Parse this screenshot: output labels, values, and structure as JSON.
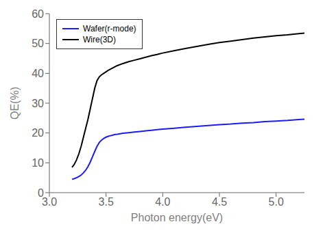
{
  "chart_data": {
    "type": "line",
    "xlabel": "Photon energy(eV)",
    "ylabel": "QE(%)",
    "x": [
      3.2,
      3.22,
      3.24,
      3.26,
      3.28,
      3.3,
      3.32,
      3.34,
      3.36,
      3.38,
      3.4,
      3.42,
      3.44,
      3.46,
      3.48,
      3.5,
      3.52,
      3.54,
      3.56,
      3.58,
      3.6,
      3.65,
      3.7,
      3.75,
      3.8,
      3.85,
      3.9,
      3.95,
      4.0,
      4.1,
      4.2,
      4.3,
      4.4,
      4.5,
      4.6,
      4.7,
      4.8,
      4.9,
      5.0,
      5.1,
      5.2,
      5.25
    ],
    "series": [
      {
        "name": "Wire(3D)",
        "color": "#000000",
        "values": [
          8.5,
          9.5,
          11.0,
          13.0,
          15.5,
          18.5,
          21.5,
          24.5,
          28.0,
          31.5,
          35.0,
          37.5,
          38.8,
          39.5,
          40.0,
          40.5,
          41.0,
          41.4,
          41.8,
          42.2,
          42.6,
          43.3,
          43.9,
          44.4,
          44.9,
          45.4,
          45.9,
          46.3,
          46.8,
          47.6,
          48.3,
          49.0,
          49.7,
          50.3,
          50.8,
          51.3,
          51.8,
          52.2,
          52.6,
          52.9,
          53.3,
          53.5
        ]
      },
      {
        "name": "Wafer(r-mode)",
        "color": "#1a1aff",
        "values": [
          4.5,
          4.7,
          5.0,
          5.4,
          5.9,
          6.6,
          7.5,
          8.7,
          10.2,
          12.0,
          13.8,
          15.5,
          16.8,
          17.6,
          18.2,
          18.6,
          18.9,
          19.1,
          19.3,
          19.5,
          19.6,
          19.9,
          20.1,
          20.3,
          20.5,
          20.7,
          20.9,
          21.1,
          21.3,
          21.6,
          21.9,
          22.2,
          22.5,
          22.8,
          23.0,
          23.3,
          23.5,
          23.8,
          24.0,
          24.2,
          24.5,
          24.6
        ]
      }
    ],
    "xlim": [
      3.0,
      5.25
    ],
    "xticks": [
      {
        "value": 3.0,
        "label": "3.0"
      },
      3.5,
      {
        "value": 4.0,
        "label": "4.0"
      },
      4.5,
      {
        "value": 5.0,
        "label": "5.0"
      }
    ],
    "ylim": [
      0,
      60
    ],
    "yticks": [
      0,
      10,
      20,
      30,
      40,
      50,
      60
    ],
    "grid": false,
    "legend": "upper left"
  }
}
